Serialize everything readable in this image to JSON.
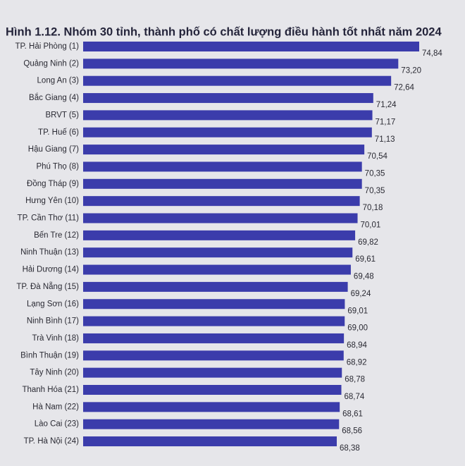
{
  "chart_data": {
    "type": "bar",
    "orientation": "horizontal",
    "title": "Hình 1.12. Nhóm 30 tỉnh, thành phố có chất lượng điều hành tốt nhất năm 2024",
    "color": "#3b3cab",
    "categories": [
      "TP. Hải Phòng (1)",
      "Quảng Ninh (2)",
      "Long An (3)",
      "Bắc Giang (4)",
      "BRVT (5)",
      "TP. Huế (6)",
      "Hậu Giang (7)",
      "Phú Thọ (8)",
      "Đồng Tháp (9)",
      "Hưng Yên (10)",
      "TP. Cần Thơ (11)",
      "Bến Tre (12)",
      "Ninh Thuận (13)",
      "Hải Dương (14)",
      "TP. Đà Nẵng (15)",
      "Lạng Sơn (16)",
      "Ninh Bình (17)",
      "Trà Vinh (18)",
      "Bình Thuận (19)",
      "Tây Ninh (20)",
      "Thanh Hóa (21)",
      "Hà Nam (22)",
      "Lào Cai (23)",
      "TP. Hà Nội (24)"
    ],
    "values": [
      74.84,
      73.2,
      72.64,
      71.24,
      71.17,
      71.13,
      70.54,
      70.35,
      70.35,
      70.18,
      70.01,
      69.82,
      69.61,
      69.48,
      69.24,
      69.01,
      69.0,
      68.94,
      68.92,
      68.78,
      68.74,
      68.61,
      68.56,
      68.38
    ],
    "value_labels": [
      "74,84",
      "73,20",
      "72,64",
      "71,24",
      "71,17",
      "71,13",
      "70,54",
      "70,35",
      "70,35",
      "70,18",
      "70,01",
      "69,82",
      "69,61",
      "69,48",
      "69,24",
      "69,01",
      "69,00",
      "68,94",
      "68,92",
      "68,78",
      "68,74",
      "68,61",
      "68,56",
      "68,38"
    ]
  }
}
